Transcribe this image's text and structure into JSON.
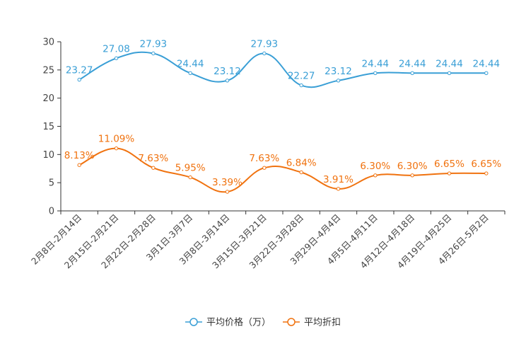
{
  "chart_data": {
    "type": "line",
    "title": "",
    "xlabel": "",
    "ylabel": "",
    "ylim": [
      0,
      30
    ],
    "yticks": [
      0,
      5,
      10,
      15,
      20,
      25,
      30
    ],
    "grid": false,
    "legend_position": "bottom-center",
    "categories": [
      "2月8日-2月14日",
      "2月15日-2月21日",
      "2月22日-2月28日",
      "3月1日-3月7日",
      "3月8日-3月14日",
      "3月15日-3月21日",
      "3月22日-3月28日",
      "3月29日-4月4日",
      "4月5日-4月11日",
      "4月12日-4月18日",
      "4月19日-4月25日",
      "4月26日-5月2日"
    ],
    "series": [
      {
        "name": "平均价格（万）",
        "color": "#3a9fd6",
        "values": [
          23.27,
          27.08,
          27.93,
          24.44,
          23.12,
          27.93,
          22.27,
          23.12,
          24.44,
          24.44,
          24.44,
          24.44
        ],
        "labels": [
          "23.27",
          "27.08",
          "27.93",
          "24.44",
          "23.12",
          "27.93",
          "22.27",
          "23.12",
          "24.44",
          "24.44",
          "24.44",
          "24.44"
        ]
      },
      {
        "name": "平均折扣",
        "color": "#f0720f",
        "values": [
          8.13,
          11.09,
          7.63,
          5.95,
          3.39,
          7.63,
          6.84,
          3.91,
          6.3,
          6.3,
          6.65,
          6.65
        ],
        "labels": [
          "8.13%",
          "11.09%",
          "7.63%",
          "5.95%",
          "3.39%",
          "7.63%",
          "6.84%",
          "3.91%",
          "6.30%",
          "6.30%",
          "6.65%",
          "6.65%"
        ]
      }
    ]
  }
}
